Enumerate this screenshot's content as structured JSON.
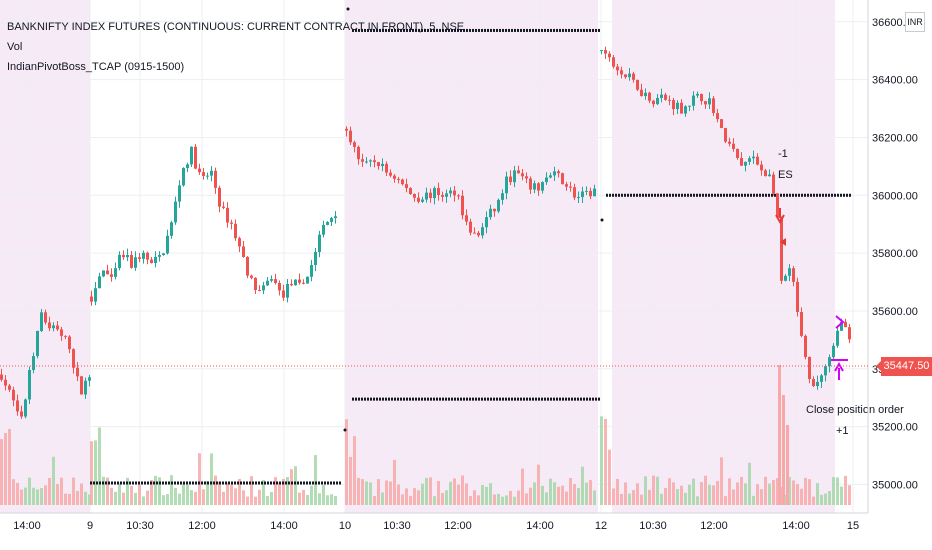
{
  "header": {
    "title": "BANKNIFTY INDEX FUTURES (CONTINUOUS: CURRENT CONTRACT IN FRONT), 5, NSE",
    "vol_label": "Vol",
    "indicator_label": "IndianPivotBoss_TCAP (0915-1500)",
    "currency_button": "INR"
  },
  "colors": {
    "up": "#26a69a",
    "down": "#ef5350",
    "session_shade": "#f6eaf6",
    "pivot_dots": "#131722",
    "grid": "#eceff3",
    "axis_text": "#131722",
    "signal_magenta": "#d500f9"
  },
  "chart_data": {
    "type": "candlestick",
    "symbol": "BANKNIFTY",
    "interval": "5",
    "exchange": "NSE",
    "y_axis": {
      "ylim": [
        34960,
        36620
      ],
      "ticks": [
        "35000.00",
        "35200.00",
        "35400.00",
        "35600.00",
        "35800.00",
        "36000.00",
        "36200.00",
        "36400.00",
        "36600.00"
      ],
      "current_price": "35447.50"
    },
    "x_axis": {
      "ticks": [
        "14:00",
        "9",
        "10:30",
        "12:00",
        "14:00",
        "10",
        "10:30",
        "12:00",
        "14:00",
        "12",
        "10:30",
        "12:00",
        "14:00",
        "15"
      ]
    },
    "grid": true,
    "annotations": {
      "short_signal_count": "-1",
      "short_signal_label": "ES",
      "close_label": "Close position order",
      "long_signal_count": "+1"
    },
    "pivot_levels": [
      {
        "name": "day10_top",
        "price": 36570
      },
      {
        "name": "day10_bottom",
        "price": 35295
      },
      {
        "name": "day12_top",
        "price": 36000
      },
      {
        "name": "day9_bottom",
        "price": 35005
      }
    ],
    "segments": [
      {
        "label": "day-8-tail",
        "points": [
          [
            0,
            35380
          ],
          [
            10,
            35300
          ],
          [
            20,
            35220
          ],
          [
            30,
            35420
          ],
          [
            40,
            35580
          ],
          [
            48,
            35550
          ],
          [
            56,
            35540
          ],
          [
            64,
            35500
          ],
          [
            72,
            35400
          ],
          [
            80,
            35320
          ],
          [
            88,
            35380
          ]
        ]
      },
      {
        "label": "day-9",
        "points": [
          [
            90,
            35650
          ],
          [
            100,
            35750
          ],
          [
            110,
            35700
          ],
          [
            120,
            35800
          ],
          [
            130,
            35760
          ],
          [
            140,
            35800
          ],
          [
            150,
            35760
          ],
          [
            160,
            35790
          ],
          [
            170,
            35900
          ],
          [
            180,
            36080
          ],
          [
            190,
            36150
          ],
          [
            200,
            36050
          ],
          [
            210,
            36080
          ],
          [
            220,
            35950
          ],
          [
            230,
            35900
          ],
          [
            240,
            35800
          ],
          [
            250,
            35700
          ],
          [
            260,
            35660
          ],
          [
            270,
            35720
          ],
          [
            280,
            35650
          ],
          [
            290,
            35700
          ],
          [
            300,
            35680
          ],
          [
            310,
            35760
          ],
          [
            320,
            35880
          ],
          [
            335,
            35950
          ]
        ]
      },
      {
        "label": "day-10",
        "points": [
          [
            345,
            36230
          ],
          [
            355,
            36140
          ],
          [
            365,
            36100
          ],
          [
            375,
            36120
          ],
          [
            385,
            36080
          ],
          [
            395,
            36060
          ],
          [
            405,
            36020
          ],
          [
            415,
            35990
          ],
          [
            425,
            36000
          ],
          [
            435,
            36010
          ],
          [
            445,
            36000
          ],
          [
            455,
            36020
          ],
          [
            465,
            35900
          ],
          [
            475,
            35850
          ],
          [
            485,
            35920
          ],
          [
            495,
            35960
          ],
          [
            505,
            36050
          ],
          [
            515,
            36080
          ],
          [
            525,
            36040
          ],
          [
            535,
            36020
          ],
          [
            545,
            36060
          ],
          [
            555,
            36070
          ],
          [
            565,
            36040
          ],
          [
            575,
            35990
          ],
          [
            585,
            36000
          ],
          [
            595,
            36020
          ]
        ]
      },
      {
        "label": "day-12",
        "points": [
          [
            600,
            36500
          ],
          [
            610,
            36460
          ],
          [
            620,
            36420
          ],
          [
            630,
            36400
          ],
          [
            640,
            36360
          ],
          [
            650,
            36330
          ],
          [
            660,
            36340
          ],
          [
            670,
            36320
          ],
          [
            680,
            36300
          ],
          [
            690,
            36330
          ],
          [
            700,
            36340
          ],
          [
            710,
            36320
          ],
          [
            720,
            36220
          ],
          [
            730,
            36160
          ],
          [
            740,
            36100
          ],
          [
            750,
            36130
          ],
          [
            760,
            36090
          ],
          [
            770,
            36060
          ],
          [
            775,
            35960
          ],
          [
            780,
            35700
          ],
          [
            790,
            35740
          ],
          [
            800,
            35500
          ],
          [
            810,
            35320
          ],
          [
            820,
            35380
          ],
          [
            830,
            35440
          ],
          [
            840,
            35580
          ],
          [
            850,
            35470
          ]
        ]
      }
    ]
  }
}
